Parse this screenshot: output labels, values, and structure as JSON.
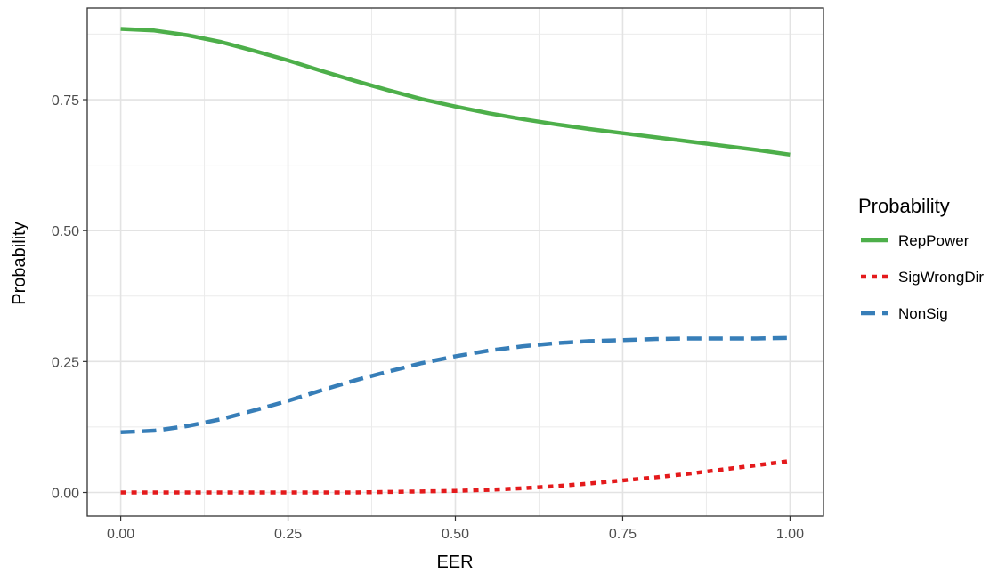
{
  "chart_data": {
    "type": "line",
    "xlabel": "EER",
    "ylabel": "Probability",
    "xlim": [
      -0.05,
      1.05
    ],
    "ylim": [
      -0.045,
      0.925
    ],
    "x_ticks": [
      0.0,
      0.25,
      0.5,
      0.75,
      1.0
    ],
    "x_tick_labels": [
      "0.00",
      "0.25",
      "0.50",
      "0.75",
      "1.00"
    ],
    "y_ticks": [
      0.0,
      0.25,
      0.5,
      0.75
    ],
    "y_tick_labels": [
      "0.00",
      "0.25",
      "0.50",
      "0.75"
    ],
    "grid": true,
    "legend": {
      "title": "Probability",
      "position": "right"
    },
    "series": [
      {
        "name": "RepPower",
        "color": "#4daf4a",
        "dash": "solid",
        "x": [
          0.0,
          0.05,
          0.1,
          0.15,
          0.2,
          0.25,
          0.3,
          0.35,
          0.4,
          0.45,
          0.5,
          0.55,
          0.6,
          0.65,
          0.7,
          0.75,
          0.8,
          0.85,
          0.9,
          0.95,
          1.0
        ],
        "y": [
          0.885,
          0.882,
          0.873,
          0.86,
          0.843,
          0.825,
          0.805,
          0.786,
          0.768,
          0.751,
          0.737,
          0.724,
          0.713,
          0.703,
          0.694,
          0.686,
          0.678,
          0.67,
          0.662,
          0.654,
          0.645
        ]
      },
      {
        "name": "SigWrongDir",
        "color": "#e41a1c",
        "dash": "dotted",
        "x": [
          0.0,
          0.05,
          0.1,
          0.15,
          0.2,
          0.25,
          0.3,
          0.35,
          0.4,
          0.45,
          0.5,
          0.55,
          0.6,
          0.65,
          0.7,
          0.75,
          0.8,
          0.85,
          0.9,
          0.95,
          1.0
        ],
        "y": [
          0.0,
          0.0,
          0.0,
          0.0,
          0.0,
          0.0,
          0.0,
          0.0,
          0.001,
          0.002,
          0.003,
          0.005,
          0.008,
          0.012,
          0.017,
          0.023,
          0.029,
          0.036,
          0.044,
          0.052,
          0.06
        ]
      },
      {
        "name": "NonSig",
        "color": "#377eb8",
        "dash": "dashed",
        "x": [
          0.0,
          0.05,
          0.1,
          0.15,
          0.2,
          0.25,
          0.3,
          0.35,
          0.4,
          0.45,
          0.5,
          0.55,
          0.6,
          0.65,
          0.7,
          0.75,
          0.8,
          0.85,
          0.9,
          0.95,
          1.0
        ],
        "y": [
          0.115,
          0.118,
          0.127,
          0.14,
          0.157,
          0.175,
          0.195,
          0.214,
          0.231,
          0.247,
          0.26,
          0.271,
          0.279,
          0.285,
          0.289,
          0.291,
          0.293,
          0.294,
          0.294,
          0.294,
          0.295
        ]
      }
    ]
  }
}
